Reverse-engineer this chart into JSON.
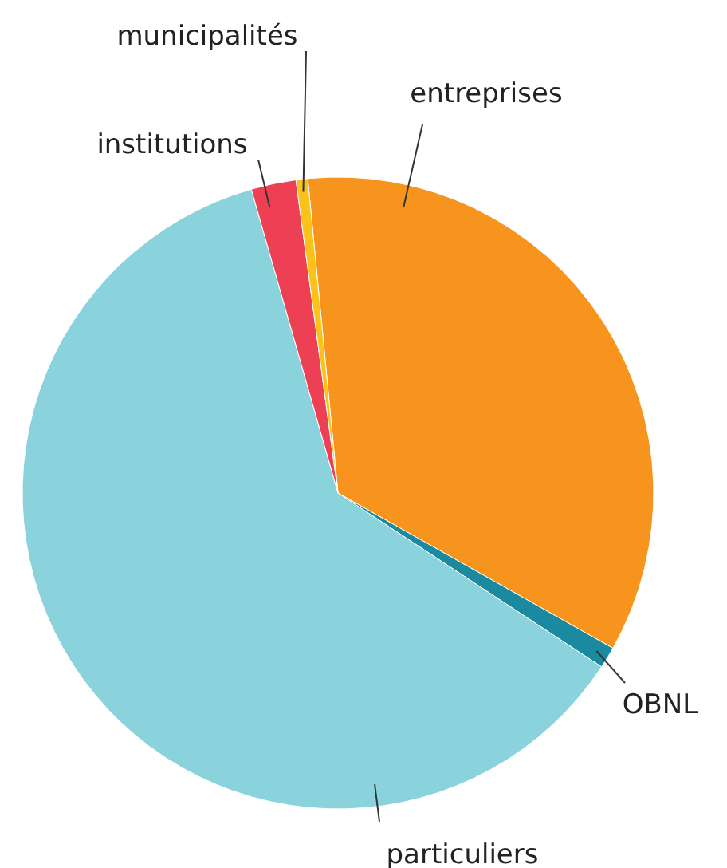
{
  "chart_data": {
    "type": "pie",
    "categories": [
      "entreprises",
      "OBNL",
      "particuliers",
      "institutions",
      "municipalités"
    ],
    "values": [
      34.7,
      1.1,
      61.3,
      2.3,
      0.6
    ],
    "colors": [
      "#f7941d",
      "#1b8aa0",
      "#8bd3dc",
      "#ee4055",
      "#fbc21b"
    ]
  }
}
